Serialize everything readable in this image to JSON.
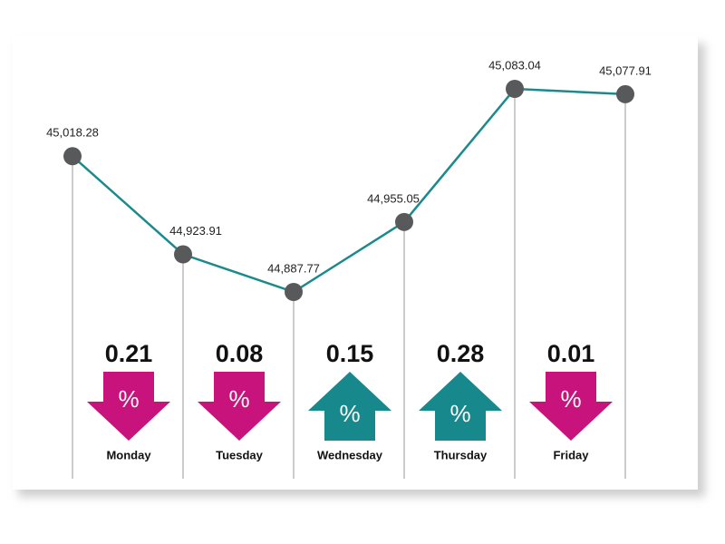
{
  "chart_data": {
    "type": "line",
    "categories": [
      null,
      null,
      null,
      null,
      null,
      null
    ],
    "values": [
      45018.28,
      44923.91,
      44887.77,
      44955.05,
      45083.04,
      45077.91
    ],
    "value_labels": [
      "45,018.28",
      "44,923.91",
      "44,887.77",
      "44,955.05",
      "45,083.04",
      "45,077.91"
    ],
    "color": "#1a8a8c",
    "marker_color": "#58595b",
    "changes": {
      "days": [
        "Monday",
        "Tuesday",
        "Wednesday",
        "Thursday",
        "Friday"
      ],
      "values": [
        0.21,
        0.08,
        0.15,
        0.28,
        0.01
      ],
      "directions": [
        "down",
        "down",
        "up",
        "up",
        "down"
      ],
      "colors": {
        "down": "#c7137b",
        "up": "#17888b"
      },
      "unit": "%"
    }
  }
}
